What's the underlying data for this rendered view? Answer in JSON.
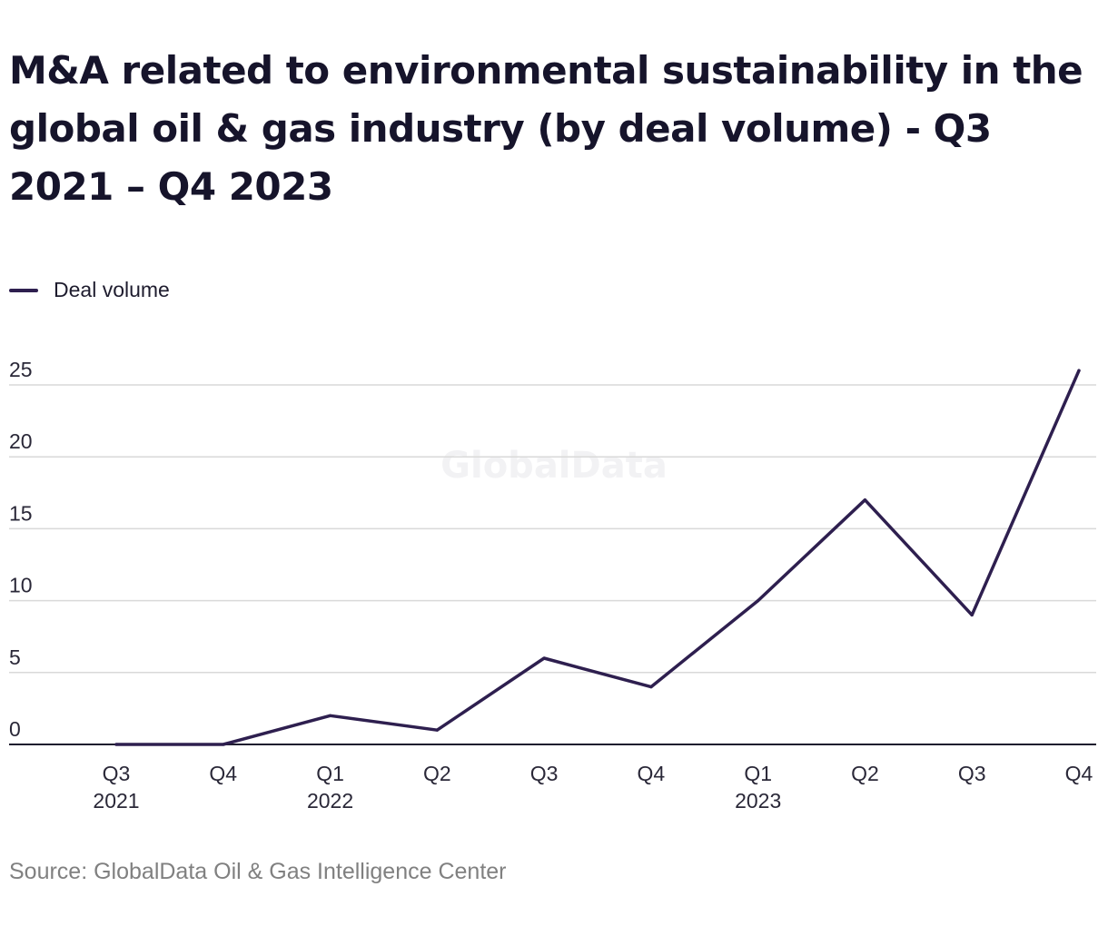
{
  "title": "M&A related to environmental sustainability in the global oil & gas industry (by deal volume) - Q3 2021 – Q4 2023",
  "legend": {
    "label": "Deal volume"
  },
  "watermark": "GlobalData",
  "source": "Source: GlobalData Oil & Gas Intelligence Center",
  "colors": {
    "line": "#2e1f4f",
    "grid": "#d9d9d9",
    "axis": "#1e1c2e",
    "text": "#16142b",
    "source": "#808080"
  },
  "chart_data": {
    "type": "line",
    "categories": [
      "Q3 2021",
      "Q4 2021",
      "Q1 2022",
      "Q2 2022",
      "Q3 2022",
      "Q4 2022",
      "Q1 2023",
      "Q2 2023",
      "Q3 2023",
      "Q4 2023"
    ],
    "x_tick_labels": [
      {
        "quarter": "Q3",
        "year": "2021"
      },
      {
        "quarter": "Q4",
        "year": ""
      },
      {
        "quarter": "Q1",
        "year": "2022"
      },
      {
        "quarter": "Q2",
        "year": ""
      },
      {
        "quarter": "Q3",
        "year": ""
      },
      {
        "quarter": "Q4",
        "year": ""
      },
      {
        "quarter": "Q1",
        "year": "2023"
      },
      {
        "quarter": "Q2",
        "year": ""
      },
      {
        "quarter": "Q3",
        "year": ""
      },
      {
        "quarter": "Q4",
        "year": ""
      }
    ],
    "series": [
      {
        "name": "Deal volume",
        "values": [
          0,
          0,
          2,
          1,
          6,
          4,
          10,
          17,
          9,
          26
        ]
      }
    ],
    "yticks": [
      0,
      5,
      10,
      15,
      20,
      25
    ],
    "ylim": [
      0,
      25
    ],
    "grid": true,
    "legend_position": "top-left"
  }
}
